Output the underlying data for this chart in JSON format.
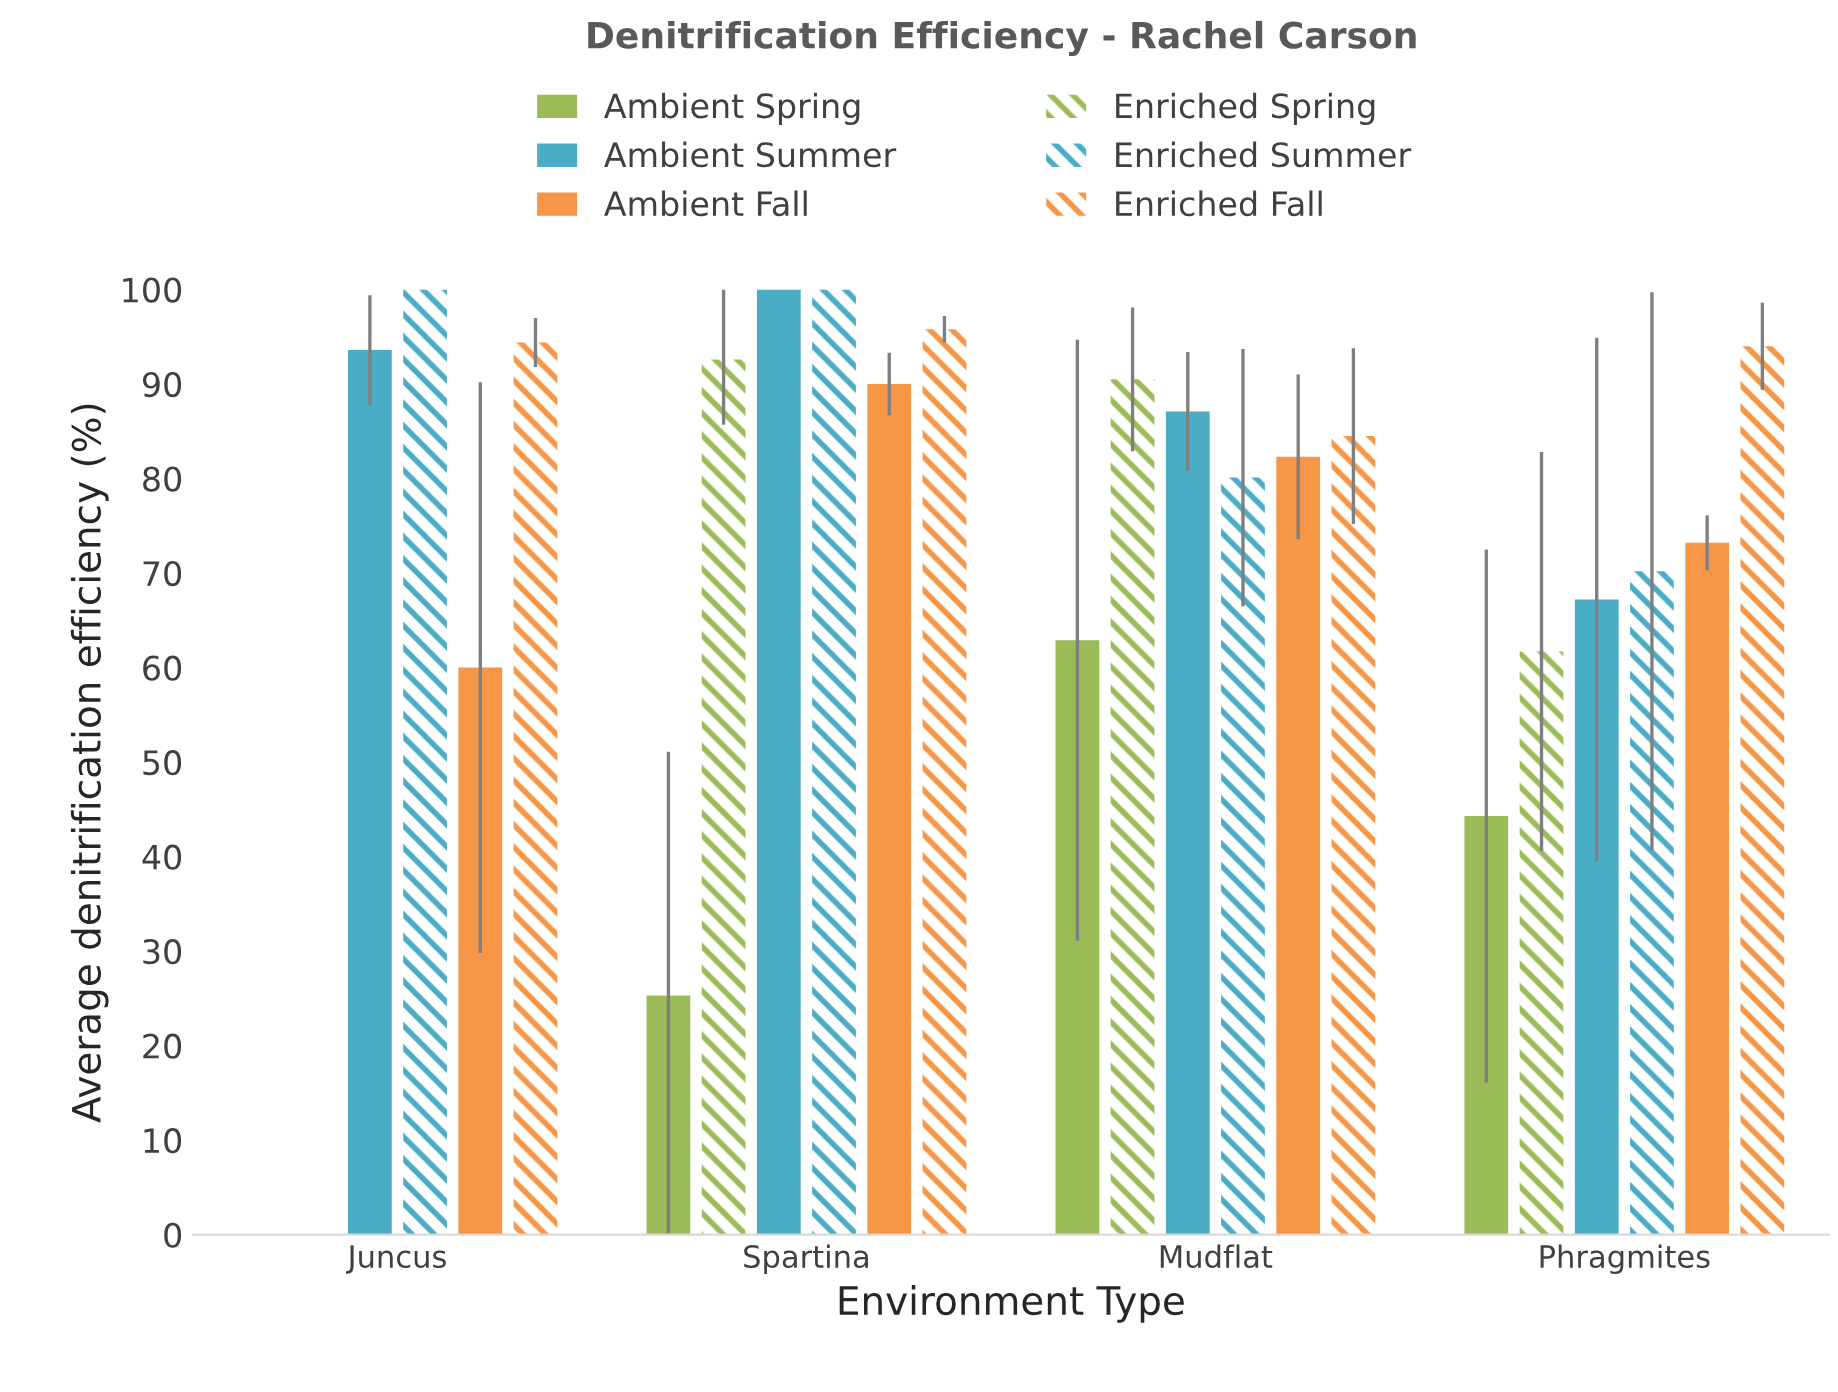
{
  "chart_data": {
    "type": "bar",
    "title": "Denitrification Efficiency - Rachel Carson",
    "xlabel": "Environment Type",
    "ylabel": "Average denitrification efficiency (%)",
    "categories": [
      "Juncus",
      "Spartina",
      "Mudflat",
      "Phragmites"
    ],
    "series": [
      {
        "name": "Ambient Spring",
        "color": "#9bbb59",
        "values": [
          null,
          25.3,
          62.9,
          44.3
        ],
        "errors": [
          null,
          [
            0,
            51.1
          ],
          31.8,
          28.2
        ]
      },
      {
        "name": "Enriched Spring",
        "color": "#9bbb59",
        "line_style": "dashed",
        "values": [
          null,
          92.6,
          90.5,
          61.7
        ],
        "errors": [
          null,
          [
            85.7,
            100
          ],
          7.6,
          21.1
        ]
      },
      {
        "name": "Ambient Summer",
        "color": "#4bacc6",
        "values": [
          93.6,
          100,
          87.1,
          67.2
        ],
        "errors": [
          5.8,
          null,
          6.3,
          27.7
        ]
      },
      {
        "name": "Enriched Summer",
        "color": "#4bacc6",
        "line_style": "dashed",
        "values": [
          100,
          100,
          80.1,
          70.2
        ],
        "errors": [
          null,
          null,
          13.6,
          29.5
        ]
      },
      {
        "name": "Ambient Fall",
        "color": "#f79646",
        "values": [
          60.0,
          90.0,
          82.3,
          73.2
        ],
        "errors": [
          30.2,
          3.3,
          8.7,
          2.9
        ]
      },
      {
        "name": "Enriched Fall",
        "color": "#f79646",
        "line_style": "dashed",
        "values": [
          94.4,
          95.8,
          84.5,
          94.0
        ],
        "errors": [
          2.6,
          1.4,
          9.3,
          4.6
        ]
      }
    ],
    "ylim": [
      0,
      100
    ],
    "yticks": [
      0,
      10,
      20,
      30,
      40,
      50,
      60,
      70,
      80,
      90,
      100
    ],
    "grid": false,
    "legend": "top"
  }
}
